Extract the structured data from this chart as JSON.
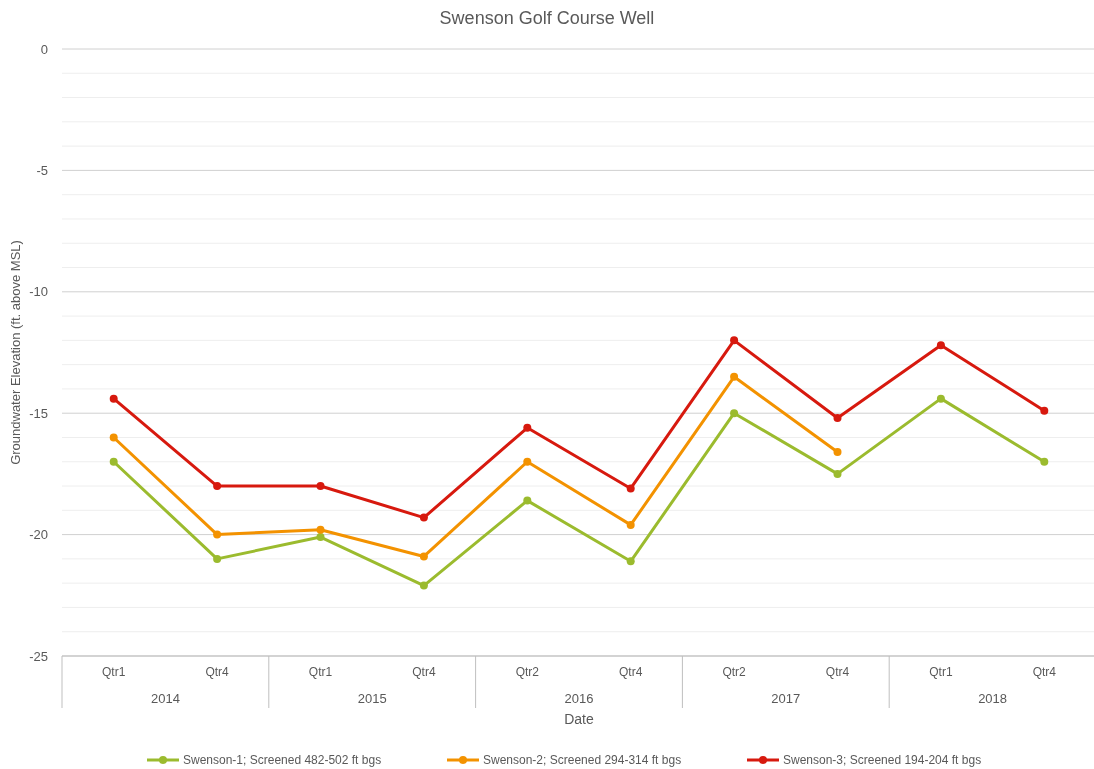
{
  "chart_data": {
    "type": "line",
    "title": "Swenson Golf Course Well",
    "xlabel": "Date",
    "ylabel": "Groundwater Elevation (ft. above MSL)",
    "categories": [
      "Qtr1",
      "Qtr4",
      "Qtr1",
      "Qtr4",
      "Qtr2",
      "Qtr4",
      "Qtr2",
      "Qtr4",
      "Qtr1",
      "Qtr4"
    ],
    "annotations": [
      "2014",
      "2015",
      "2016",
      "2017",
      "2018"
    ],
    "series": [
      {
        "name": "Swenson-1; Screened 482-502 ft bgs",
        "color": "#9bbb2e",
        "values": [
          -17.0,
          -21.0,
          -20.1,
          -22.1,
          -18.6,
          -21.1,
          -15.0,
          -17.5,
          -14.4,
          -17.0
        ]
      },
      {
        "name": "Swenson-2; Screened 294-314 ft bgs",
        "color": "#f39200",
        "values": [
          -16.0,
          -20.0,
          -19.8,
          -20.9,
          -17.0,
          -19.6,
          -13.5,
          -16.6,
          null,
          null
        ]
      },
      {
        "name": "Swenson-3; Screened 194-204 ft bgs",
        "color": "#d7190e",
        "values": [
          -14.4,
          -18.0,
          -18.0,
          -19.3,
          -15.6,
          -18.1,
          -12.0,
          -15.2,
          -12.2,
          -14.9
        ]
      }
    ],
    "ylim": [
      -25,
      0
    ],
    "yticks": [
      -25,
      {
        "value": -24,
        "label": null
      },
      {
        "value": -23,
        "label": null
      },
      {
        "value": -22,
        "label": null
      },
      {
        "value": -21,
        "label": null
      },
      -20,
      {
        "value": -19,
        "label": null
      },
      {
        "value": -18,
        "label": null
      },
      {
        "value": -17,
        "label": null
      },
      {
        "value": -16,
        "label": null
      },
      -15,
      {
        "value": -14,
        "label": null
      },
      {
        "value": -13,
        "label": null
      },
      {
        "value": -12,
        "label": null
      },
      {
        "value": -11,
        "label": null
      },
      -10,
      {
        "value": -9,
        "label": null
      },
      {
        "value": -8,
        "label": null
      },
      {
        "value": -7,
        "label": null
      },
      {
        "value": -6,
        "label": null
      },
      -5,
      {
        "value": -4,
        "label": null
      },
      {
        "value": -3,
        "label": null
      },
      {
        "value": -2,
        "label": null
      },
      {
        "value": -1,
        "label": null
      },
      0
    ],
    "grid": true,
    "legend": "bottom",
    "marker": "circle",
    "line_style": "solid"
  }
}
